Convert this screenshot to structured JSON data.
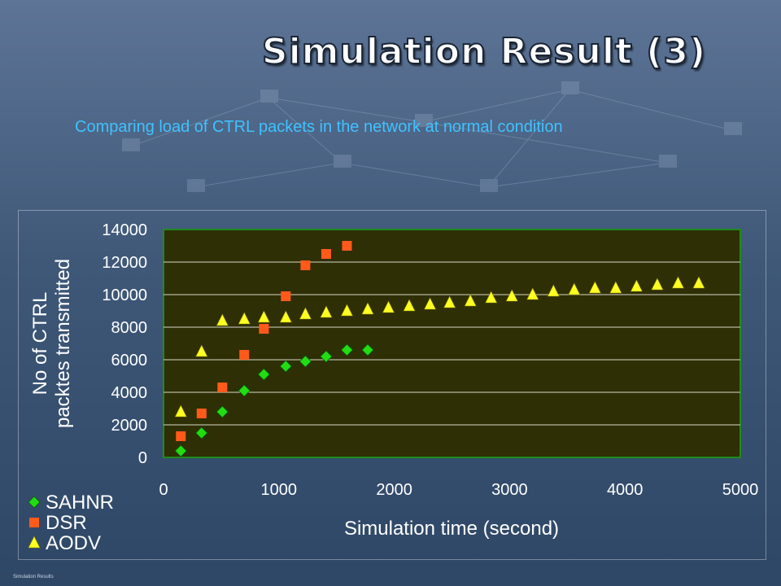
{
  "slide": {
    "title": "Simulation Result (3)",
    "subtitle": "Comparing load of CTRL packets in the network at normal condition",
    "footer": "Simulation Results"
  },
  "colors": {
    "title": "#ffffff",
    "subtitle": "#3fc2ff",
    "plot_background": "#2e2f05",
    "plot_border": "#1f8a1f",
    "axis_text": "#ffffff",
    "sahnr": "#22dd11",
    "dsr": "#ff5a1a",
    "aodv": "#ffff22"
  },
  "chart_data": {
    "type": "scatter",
    "xlabel": "Simulation time (second)",
    "ylabel": "No of CTRL packtes transmitted",
    "xlim": [
      0,
      5000
    ],
    "ylim": [
      0,
      14000
    ],
    "xticks": [
      0,
      1000,
      2000,
      3000,
      4000,
      5000
    ],
    "yticks": [
      0,
      2000,
      4000,
      6000,
      8000,
      10000,
      12000,
      14000
    ],
    "grid": "horizontal",
    "legend_position": "bottom-left",
    "series": [
      {
        "name": "SAHNR",
        "marker": "diamond",
        "color": "#22dd11",
        "x": [
          150,
          330,
          510,
          700,
          870,
          1060,
          1230,
          1410,
          1590,
          1770
        ],
        "y": [
          400,
          1500,
          2800,
          4100,
          5100,
          5600,
          5900,
          6200,
          6600,
          6600
        ]
      },
      {
        "name": "DSR",
        "marker": "square",
        "color": "#ff5a1a",
        "x": [
          150,
          330,
          510,
          700,
          870,
          1060,
          1230,
          1410,
          1590
        ],
        "y": [
          1300,
          2700,
          4300,
          6300,
          7900,
          9900,
          11800,
          12500,
          13000
        ]
      },
      {
        "name": "AODV",
        "marker": "triangle",
        "color": "#ffff22",
        "x": [
          150,
          330,
          510,
          700,
          870,
          1060,
          1230,
          1410,
          1590,
          1770,
          1950,
          2130,
          2310,
          2480,
          2660,
          2840,
          3020,
          3200,
          3380,
          3560,
          3740,
          3920,
          4100,
          4280,
          4460,
          4640
        ],
        "y": [
          2800,
          6500,
          8400,
          8500,
          8600,
          8600,
          8800,
          8900,
          9000,
          9100,
          9200,
          9300,
          9400,
          9500,
          9600,
          9800,
          9900,
          10000,
          10200,
          10300,
          10400,
          10400,
          10500,
          10600,
          10700,
          10700
        ]
      }
    ]
  }
}
